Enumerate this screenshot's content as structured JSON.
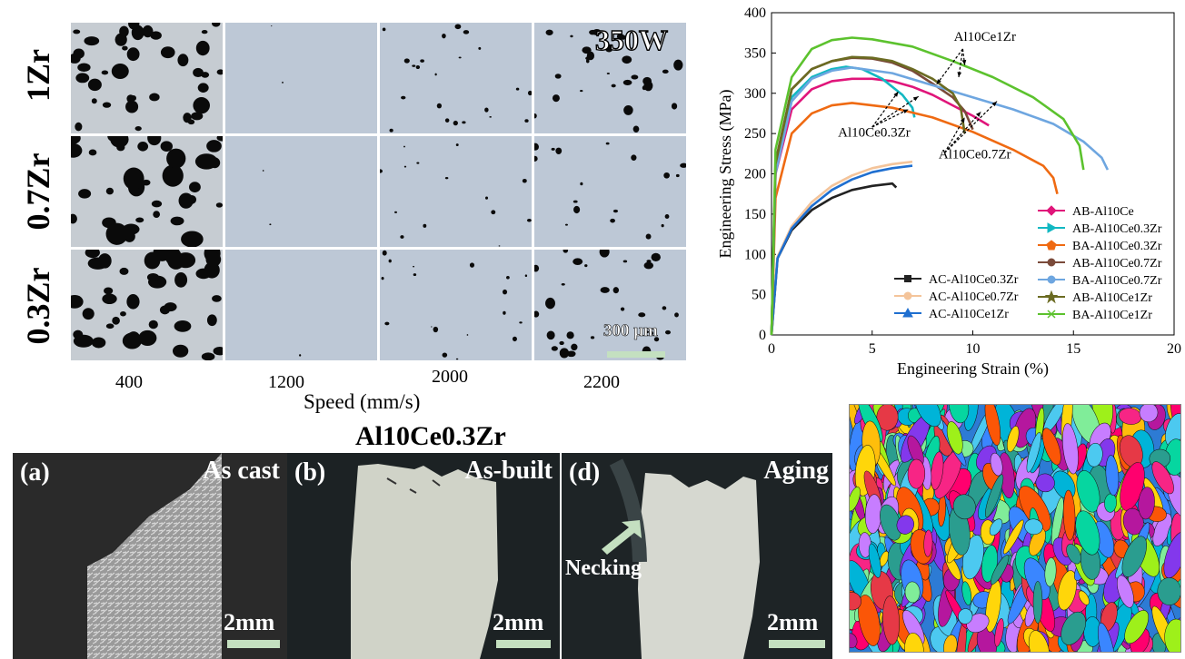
{
  "micrographs": {
    "power_label": "350W",
    "rows": [
      "1Zr",
      "0.7Zr",
      "0.3Zr"
    ],
    "speeds": [
      "400",
      "1200",
      "2000",
      "2200"
    ],
    "xlabel": "Speed (mm/s)",
    "scale_label": "300 μm"
  },
  "fracture": {
    "title": "Al10Ce0.3Zr",
    "panels": [
      {
        "tag": "(a)",
        "condition": "As cast",
        "scale": "2mm"
      },
      {
        "tag": "(b)",
        "condition": "As-built",
        "scale": "2mm"
      },
      {
        "tag": "(d)",
        "condition": "Aging",
        "scale": "2mm",
        "annotation": "Necking"
      }
    ]
  },
  "chart_data": {
    "type": "line",
    "xlabel": "Engineering Strain (%)",
    "ylabel": "Engineering Stress (MPa)",
    "xlim": [
      0,
      20
    ],
    "ylim": [
      0,
      400
    ],
    "xticks": [
      0,
      5,
      10,
      15,
      20
    ],
    "yticks": [
      0,
      50,
      100,
      150,
      200,
      250,
      300,
      350,
      400
    ],
    "legend_placement": "bottom-right",
    "annotations": [
      "Al10Ce1Zr",
      "Al10Ce0.3Zr",
      "Al10Ce0.7Zr"
    ],
    "series": [
      {
        "name": "AC-Al10Ce0.3Zr",
        "color": "#222222",
        "marker": "square",
        "points": [
          [
            0,
            0
          ],
          [
            0.3,
            95
          ],
          [
            1,
            130
          ],
          [
            2,
            155
          ],
          [
            3,
            170
          ],
          [
            4,
            180
          ],
          [
            5,
            185
          ],
          [
            6,
            188
          ],
          [
            6.2,
            183
          ]
        ]
      },
      {
        "name": "AC-Al10Ce0.7Zr",
        "color": "#f4c49a",
        "marker": "circle",
        "points": [
          [
            0,
            0
          ],
          [
            0.3,
            97
          ],
          [
            1,
            135
          ],
          [
            2,
            165
          ],
          [
            3,
            185
          ],
          [
            4,
            198
          ],
          [
            5,
            207
          ],
          [
            6,
            212
          ],
          [
            7,
            215
          ]
        ]
      },
      {
        "name": "AC-Al10Ce1Zr",
        "color": "#1f6fd0",
        "marker": "triangle",
        "points": [
          [
            0,
            0
          ],
          [
            0.3,
            95
          ],
          [
            1,
            132
          ],
          [
            2,
            160
          ],
          [
            3,
            180
          ],
          [
            4,
            193
          ],
          [
            5,
            202
          ],
          [
            6,
            207
          ],
          [
            7,
            210
          ]
        ]
      },
      {
        "name": "AB-Al10Ce",
        "color": "#e0157a",
        "marker": "diamond",
        "points": [
          [
            0,
            0
          ],
          [
            0.2,
            200
          ],
          [
            1,
            280
          ],
          [
            2,
            305
          ],
          [
            3,
            315
          ],
          [
            4,
            318
          ],
          [
            5,
            318
          ],
          [
            6,
            315
          ],
          [
            7,
            308
          ],
          [
            8,
            298
          ],
          [
            9,
            285
          ],
          [
            10,
            272
          ],
          [
            10.8,
            260
          ]
        ]
      },
      {
        "name": "AB-Al10Ce0.3Zr",
        "color": "#12b8c2",
        "marker": "triangle-right",
        "points": [
          [
            0,
            0
          ],
          [
            0.2,
            210
          ],
          [
            1,
            295
          ],
          [
            2,
            320
          ],
          [
            3,
            330
          ],
          [
            3.7,
            333
          ],
          [
            4.5,
            330
          ],
          [
            5.5,
            318
          ],
          [
            6.5,
            298
          ],
          [
            7,
            282
          ],
          [
            7.1,
            270
          ]
        ]
      },
      {
        "name": "BA-Al10Ce0.3Zr",
        "color": "#ef6a12",
        "marker": "pentagon",
        "points": [
          [
            0,
            0
          ],
          [
            0.2,
            170
          ],
          [
            1,
            250
          ],
          [
            2,
            275
          ],
          [
            3,
            285
          ],
          [
            4,
            288
          ],
          [
            6,
            282
          ],
          [
            8,
            270
          ],
          [
            10,
            252
          ],
          [
            12,
            230
          ],
          [
            13.5,
            210
          ],
          [
            14,
            195
          ],
          [
            14.2,
            175
          ]
        ]
      },
      {
        "name": "AB-Al10Ce0.7Zr",
        "color": "#7a4a3a",
        "marker": "circle",
        "points": [
          [
            0,
            0
          ],
          [
            0.2,
            215
          ],
          [
            1,
            305
          ],
          [
            2,
            330
          ],
          [
            3,
            340
          ],
          [
            4,
            344
          ],
          [
            5,
            343
          ],
          [
            6,
            338
          ],
          [
            7,
            328
          ],
          [
            8,
            312
          ],
          [
            9,
            295
          ],
          [
            9.6,
            278
          ],
          [
            10,
            255
          ]
        ]
      },
      {
        "name": "BA-Al10Ce0.7Zr",
        "color": "#6ea6e0",
        "marker": "circle",
        "points": [
          [
            0,
            0
          ],
          [
            0.2,
            200
          ],
          [
            1,
            290
          ],
          [
            2,
            318
          ],
          [
            3,
            328
          ],
          [
            4,
            332
          ],
          [
            6,
            325
          ],
          [
            8,
            310
          ],
          [
            10,
            295
          ],
          [
            12,
            280
          ],
          [
            14,
            262
          ],
          [
            15.5,
            240
          ],
          [
            16.4,
            220
          ],
          [
            16.7,
            205
          ]
        ]
      },
      {
        "name": "AB-Al10Ce1Zr",
        "color": "#6b6b22",
        "marker": "star",
        "points": [
          [
            0,
            0
          ],
          [
            0.2,
            212
          ],
          [
            1,
            305
          ],
          [
            2,
            330
          ],
          [
            3,
            340
          ],
          [
            4,
            345
          ],
          [
            5,
            344
          ],
          [
            6,
            340
          ],
          [
            7,
            330
          ],
          [
            8,
            318
          ],
          [
            9,
            300
          ],
          [
            9.4,
            282
          ],
          [
            9.6,
            250
          ]
        ]
      },
      {
        "name": "BA-Al10Ce1Zr",
        "color": "#5cc22e",
        "marker": "x",
        "points": [
          [
            0,
            0
          ],
          [
            0.2,
            230
          ],
          [
            1,
            320
          ],
          [
            2,
            355
          ],
          [
            3,
            366
          ],
          [
            4,
            369
          ],
          [
            5,
            367
          ],
          [
            7,
            358
          ],
          [
            9,
            340
          ],
          [
            11,
            320
          ],
          [
            13,
            295
          ],
          [
            14.5,
            268
          ],
          [
            15.3,
            235
          ],
          [
            15.5,
            205
          ]
        ]
      }
    ]
  }
}
